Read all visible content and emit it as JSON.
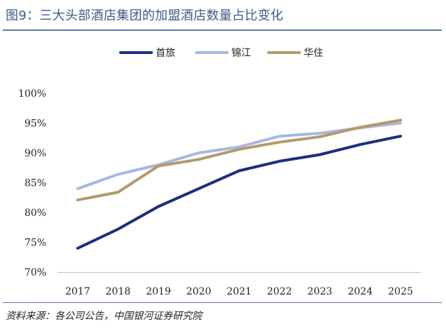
{
  "figure": {
    "title": "图9：三大头部酒店集团的加盟酒店数量占比变化",
    "source": "资料来源：各公司公告，中国银河证券研究院"
  },
  "chart_data": {
    "type": "line",
    "title": "",
    "xlabel": "",
    "ylabel": "",
    "categories": [
      "2017",
      "2018",
      "2019",
      "2020",
      "2021",
      "2022",
      "2023",
      "2024",
      "2025"
    ],
    "y_ticks": [
      "70%",
      "75%",
      "80%",
      "85%",
      "90%",
      "95%",
      "100%"
    ],
    "ylim": [
      70,
      100
    ],
    "y_unit": "%",
    "grid": false,
    "legend_position": "top-center",
    "series": [
      {
        "name": "首旅",
        "color": "#1b2f7e",
        "values": [
          74.0,
          77.2,
          81.0,
          84.0,
          87.0,
          88.6,
          89.7,
          91.4,
          92.8
        ]
      },
      {
        "name": "锦江",
        "color": "#a6b8e0",
        "values": [
          84.0,
          86.4,
          88.0,
          90.0,
          91.0,
          92.8,
          93.3,
          94.2,
          95.0
        ]
      },
      {
        "name": "华住",
        "color": "#b5996a",
        "values": [
          82.1,
          83.4,
          87.8,
          88.9,
          90.6,
          91.8,
          92.7,
          94.3,
          95.5
        ]
      }
    ]
  }
}
